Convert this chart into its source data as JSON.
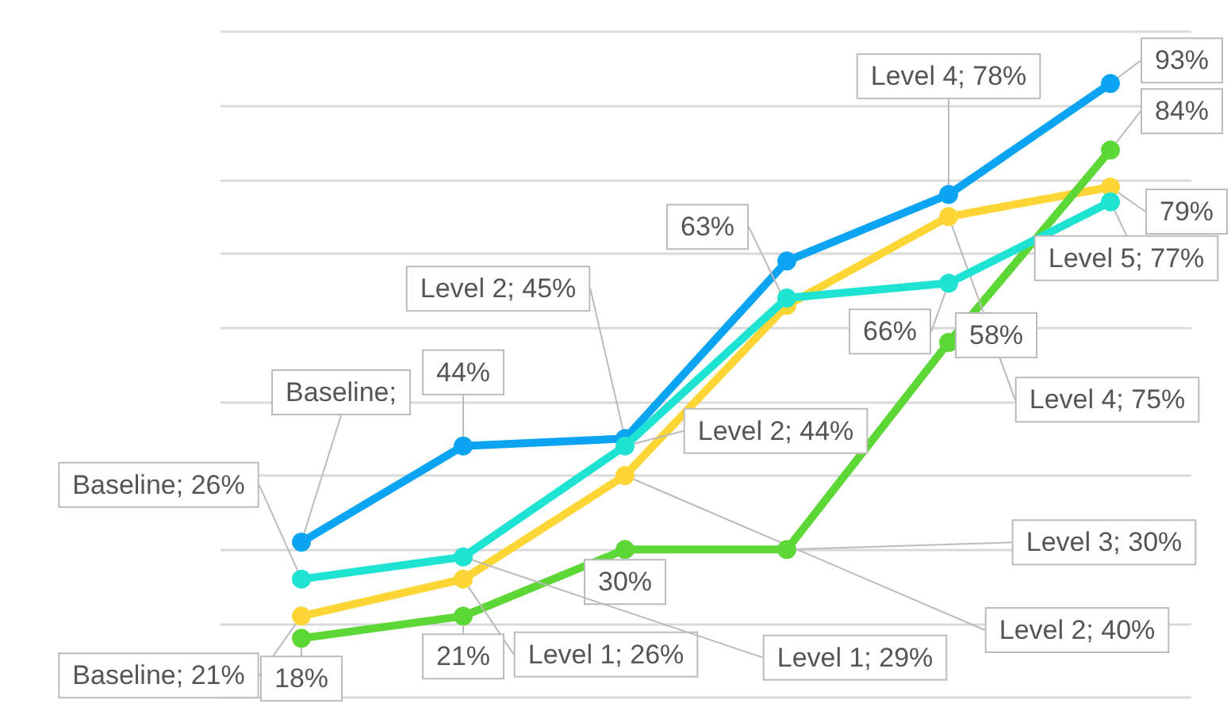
{
  "chart_data": {
    "type": "line",
    "categories": [
      null,
      null,
      null,
      null,
      null,
      null
    ],
    "ylim": [
      10,
      100
    ],
    "yticks": [
      {
        "value": 10,
        "label": null
      },
      {
        "value": 20,
        "label": null
      },
      {
        "value": 30,
        "label": null
      },
      {
        "value": 40,
        "label": null
      },
      {
        "value": 50,
        "label": null
      },
      {
        "value": 60,
        "label": null
      },
      {
        "value": 70,
        "label": null
      },
      {
        "value": 80,
        "label": null
      },
      {
        "value": 90,
        "label": null
      },
      {
        "value": 100,
        "label": null
      }
    ],
    "grid": "y",
    "marker": "circle",
    "line_style": "solid",
    "series": [
      {
        "color": "#0ba4f2",
        "values": [
          31,
          44,
          45,
          69,
          78,
          93
        ],
        "value_labels": [
          "Baseline;",
          "44%",
          "Level 2; 45%",
          null,
          "Level 4; 78%",
          "93%"
        ]
      },
      {
        "color": "#1ee3d2",
        "values": [
          26,
          29,
          44,
          64,
          66,
          77
        ],
        "value_labels": [
          "Baseline; 26%",
          "Level 1; 29%",
          "Level 2; 44%",
          null,
          "66%",
          "Level 5; 77%"
        ]
      },
      {
        "color": "#fdd534",
        "values": [
          21,
          26,
          40,
          63,
          75,
          79
        ],
        "value_labels": [
          "Baseline; 21%",
          "Level 1; 26%",
          "Level 2; 40%",
          "63%",
          "Level 4; 75%",
          "79%"
        ]
      },
      {
        "color": "#5dd736",
        "values": [
          18,
          21,
          30,
          30,
          58,
          84
        ],
        "value_labels": [
          "18%",
          "21%",
          "30%",
          "Level 3; 30%",
          "58%",
          "84%"
        ]
      }
    ]
  }
}
